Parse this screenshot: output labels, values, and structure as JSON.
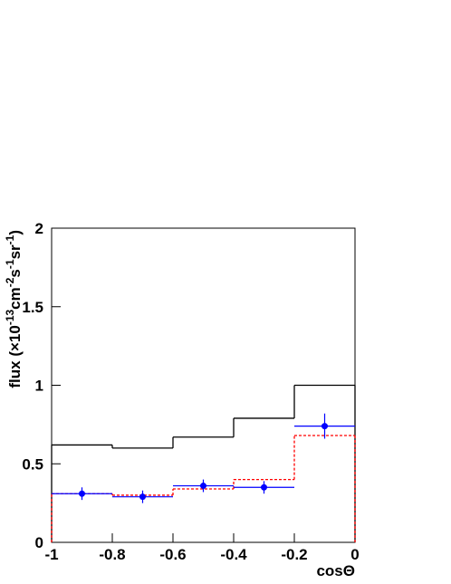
{
  "chart_data": {
    "type": "histogram",
    "xlabel": "cosΘ",
    "ylabel": [
      "flux (×10",
      "-13",
      "cm",
      "-2",
      "s",
      "-1",
      "sr",
      "-1",
      ")"
    ],
    "bins": [
      -1,
      -0.8,
      -0.6,
      -0.4,
      -0.2,
      0
    ],
    "series": [
      {
        "color": "#000000",
        "style": "solid",
        "values": [
          0.62,
          0.6,
          0.67,
          0.79,
          1.0
        ]
      },
      {
        "color": "#ff0000",
        "style": "dashed",
        "values": [
          0.31,
          0.3,
          0.34,
          0.4,
          0.68
        ]
      },
      {
        "color": "#0000ff",
        "style": "points",
        "values": [
          0.31,
          0.29,
          0.36,
          0.35,
          0.74
        ],
        "errors": [
          0.04,
          0.04,
          0.04,
          0.04,
          0.08
        ]
      }
    ],
    "xlim": [
      -1,
      0
    ],
    "ylim": [
      0,
      2
    ],
    "xticks": [
      -1,
      -0.8,
      -0.6,
      -0.4,
      -0.2,
      0
    ],
    "yticks": [
      0,
      0.5,
      1,
      1.5,
      2
    ]
  }
}
